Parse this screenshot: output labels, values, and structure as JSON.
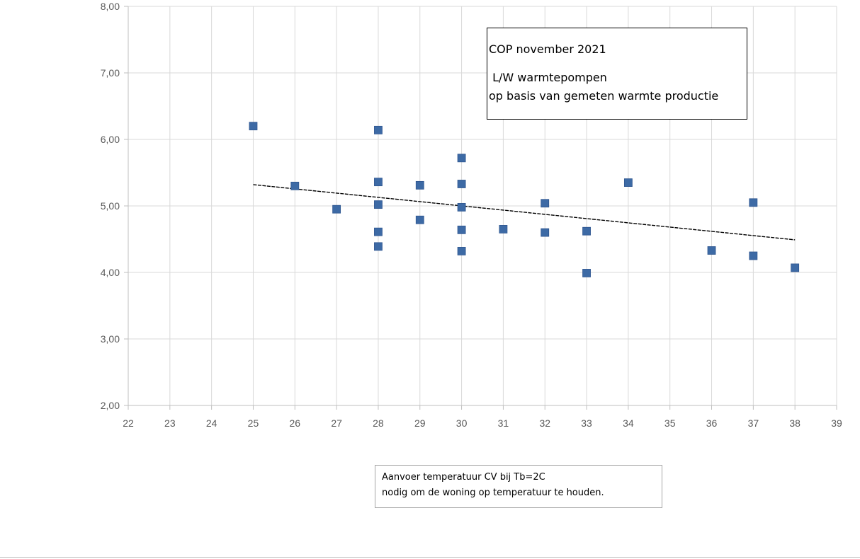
{
  "chart_data": {
    "type": "scatter",
    "title": [
      "COP  november  2021",
      " L/W warmtepompen",
      "op basis van gemeten warmte productie"
    ],
    "xlabel": [
      "Aanvoer temperatuur CV bij Tb=2C",
      "nodig om de woning op temperatuur te houden."
    ],
    "ylabel": "",
    "xlim": [
      22,
      39
    ],
    "ylim": [
      2,
      8
    ],
    "x_ticks": [
      "22",
      "23",
      "24",
      "25",
      "26",
      "27",
      "28",
      "29",
      "30",
      "31",
      "32",
      "33",
      "34",
      "35",
      "36",
      "37",
      "38",
      "39"
    ],
    "y_ticks": [
      "2,00",
      "3,00",
      "4,00",
      "5,00",
      "6,00",
      "7,00",
      "8,00"
    ],
    "grid": true,
    "legend": "none",
    "series": [
      {
        "color": "#3d6aa5",
        "marker": "square",
        "points": [
          [
            25,
            6.2
          ],
          [
            26,
            5.3
          ],
          [
            27,
            4.95
          ],
          [
            28,
            6.14
          ],
          [
            28,
            5.36
          ],
          [
            28,
            5.02
          ],
          [
            28,
            4.61
          ],
          [
            28,
            4.39
          ],
          [
            29,
            5.31
          ],
          [
            29,
            4.79
          ],
          [
            30,
            5.72
          ],
          [
            30,
            5.33
          ],
          [
            30,
            4.98
          ],
          [
            30,
            4.64
          ],
          [
            30,
            4.32
          ],
          [
            31,
            4.65
          ],
          [
            32,
            5.04
          ],
          [
            32,
            4.6
          ],
          [
            33,
            4.62
          ],
          [
            33,
            3.99
          ],
          [
            34,
            5.35
          ],
          [
            36,
            4.33
          ],
          [
            37,
            5.05
          ],
          [
            37,
            4.25
          ],
          [
            38,
            4.07
          ]
        ]
      }
    ],
    "trendline": {
      "type": "linear",
      "color": "#000000",
      "style": "dashed",
      "from": [
        25,
        5.32
      ],
      "to": [
        38,
        4.49
      ]
    }
  }
}
